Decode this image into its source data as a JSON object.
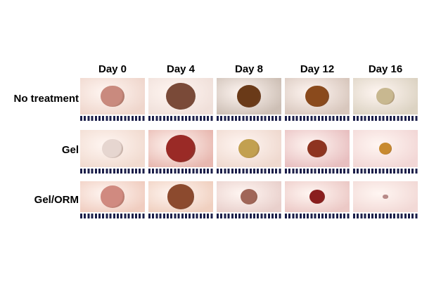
{
  "columns": [
    "Day 0",
    "Day 4",
    "Day 8",
    "Day 12",
    "Day 16"
  ],
  "rows": [
    {
      "label": "No treatment",
      "skin": [
        "#efd6cc",
        "#f0e0da",
        "#cdbfb5",
        "#d8c7bd",
        "#dcd3c3"
      ],
      "wound": [
        "#c98a7e",
        "#7a4a38",
        "#6a3a18",
        "#8a4a1c",
        "#c8b890"
      ],
      "wound_size": [
        0.36,
        0.45,
        0.38,
        0.36,
        0.28
      ]
    },
    {
      "label": "Gel",
      "skin": [
        "#f1dbd0",
        "#e8b8b0",
        "#efd9cf",
        "#e8bfc0",
        "#f2d7d6"
      ],
      "wound": [
        "#e6d6d0",
        "#9a2a26",
        "#c2a050",
        "#8e3420",
        "#c88a30"
      ],
      "wound_size": [
        0.33,
        0.46,
        0.33,
        0.3,
        0.2
      ]
    },
    {
      "label": "Gel/ORM",
      "skin": [
        "#f0cdc0",
        "#f0d0c0",
        "#e9d0cc",
        "#ecc9c6",
        "#f2d9d6"
      ],
      "wound": [
        "#d08a80",
        "#8c4a2e",
        "#a06658",
        "#8a1e1e",
        "#b88a88"
      ],
      "wound_size": [
        0.38,
        0.42,
        0.26,
        0.24,
        0.08
      ]
    }
  ]
}
